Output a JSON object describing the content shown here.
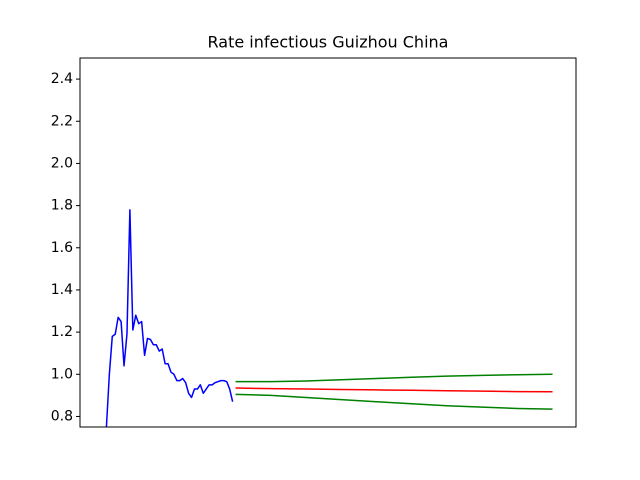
{
  "chart_data": {
    "type": "line",
    "title": "Rate infectious Guizhou China",
    "xlim": [
      -9,
      160
    ],
    "ylim": [
      0.75,
      2.5
    ],
    "yticks": [
      0.8,
      {
        "value": 1,
        "label": "1.0"
      },
      1.2,
      1.4,
      1.6,
      1.8,
      {
        "value": 2,
        "label": "2.0"
      },
      2.2,
      2.4
    ],
    "series": [
      {
        "color": "#0000ff",
        "x": [
          0,
          1,
          2,
          3,
          4,
          5,
          6,
          7,
          8,
          9,
          10,
          11,
          12,
          13,
          14,
          15,
          16,
          17,
          18,
          19,
          20,
          21,
          22,
          23,
          24,
          25,
          26,
          27,
          28,
          29,
          30,
          31,
          32,
          33,
          34,
          35,
          36,
          37,
          38,
          39,
          40,
          41,
          42,
          43
        ],
        "values": [
          0.75,
          1.0,
          1.18,
          1.19,
          1.27,
          1.25,
          1.04,
          1.19,
          1.78,
          1.21,
          1.28,
          1.24,
          1.25,
          1.09,
          1.17,
          1.165,
          1.14,
          1.14,
          1.11,
          1.12,
          1.05,
          1.05,
          1.01,
          1.0,
          0.97,
          0.97,
          0.98,
          0.96,
          0.91,
          0.89,
          0.93,
          0.93,
          0.95,
          0.91,
          0.93,
          0.95,
          0.95,
          0.96,
          0.965,
          0.97,
          0.97,
          0.965,
          0.93,
          0.87
        ]
      },
      {
        "color": "#ff0000",
        "x": [
          44,
          56,
          68,
          80,
          92,
          104,
          116,
          128,
          140,
          152
        ],
        "values": [
          0.935,
          0.932,
          0.93,
          0.928,
          0.926,
          0.924,
          0.922,
          0.92,
          0.918,
          0.917
        ]
      },
      {
        "color": "#008000",
        "x": [
          44,
          56,
          68,
          80,
          92,
          104,
          116,
          128,
          140,
          152
        ],
        "values": [
          0.965,
          0.965,
          0.968,
          0.974,
          0.98,
          0.986,
          0.991,
          0.995,
          0.998,
          1.0
        ]
      },
      {
        "color": "#008000",
        "x": [
          44,
          56,
          68,
          80,
          92,
          104,
          116,
          128,
          140,
          152
        ],
        "values": [
          0.905,
          0.9,
          0.89,
          0.88,
          0.87,
          0.86,
          0.851,
          0.844,
          0.838,
          0.835
        ]
      }
    ]
  }
}
